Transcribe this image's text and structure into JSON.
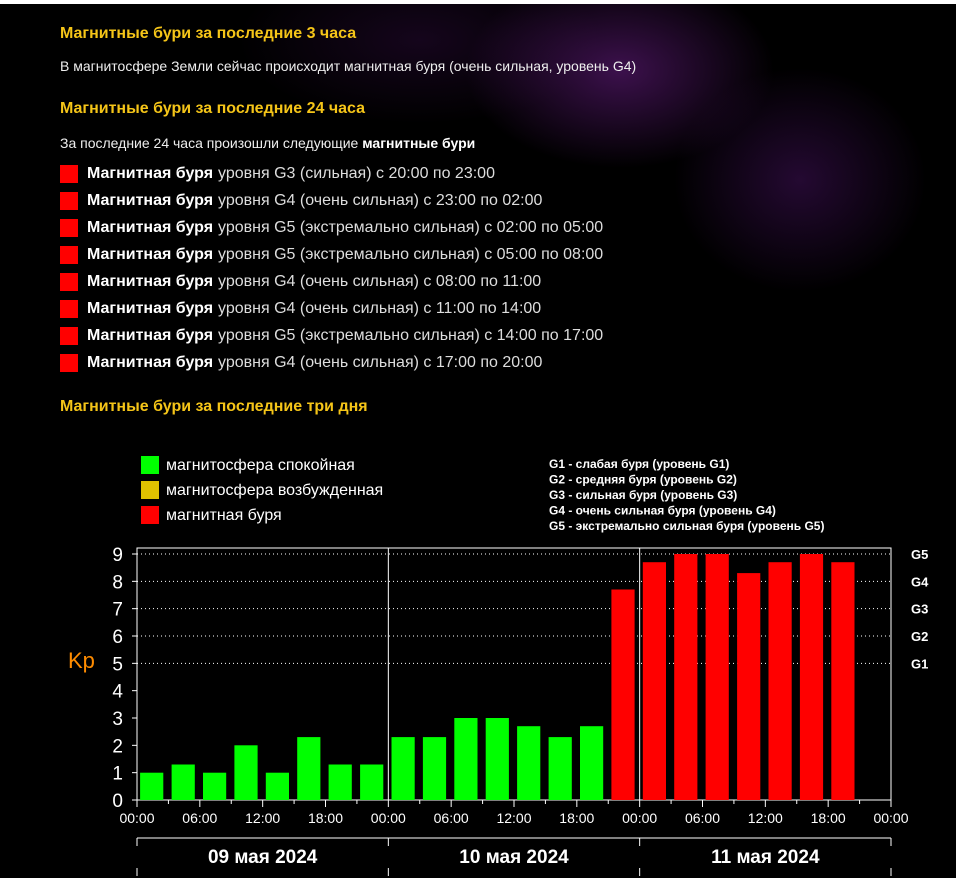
{
  "section_3h": {
    "title": "Магнитные бури за последние 3 часа",
    "text": "В магнитосфере Земли сейчас происходит магнитная буря (очень сильная, уровень G4)"
  },
  "section_24h": {
    "title": "Магнитные бури за последние 24 часа",
    "intro_prefix": "За последние 24 часа произошли следующие",
    "intro_bold": "магнитные бури",
    "items": [
      {
        "bold": "Магнитная буря",
        "text": "уровня G3 (сильная) с 20:00 по 23:00"
      },
      {
        "bold": "Магнитная буря",
        "text": "уровня G4 (очень сильная) с 23:00 по 02:00"
      },
      {
        "bold": "Магнитная буря",
        "text": "уровня G5 (экстремально сильная) с 02:00 по 05:00"
      },
      {
        "bold": "Магнитная буря",
        "text": "уровня G5 (экстремально сильная) с 05:00 по 08:00"
      },
      {
        "bold": "Магнитная буря",
        "text": "уровня G4 (очень сильная) с 08:00 по 11:00"
      },
      {
        "bold": "Магнитная буря",
        "text": "уровня G4 (очень сильная) с 11:00 по 14:00"
      },
      {
        "bold": "Магнитная буря",
        "text": "уровня G5 (экстремально сильная) с 14:00 по 17:00"
      },
      {
        "bold": "Магнитная буря",
        "text": "уровня G4 (очень сильная) с 17:00 по 20:00"
      }
    ]
  },
  "section_3d": {
    "title": "Магнитные бури за последние три дня"
  },
  "colors": {
    "heading": "#f5c518",
    "calm": "#00ff00",
    "excited": "#e0c000",
    "storm": "#ff0000",
    "ylabel": "#ff8c00"
  },
  "chart_data": {
    "type": "bar",
    "ylabel": "Kp",
    "ylim": [
      0,
      9
    ],
    "yticks": [
      "0",
      "1",
      "2",
      "3",
      "4",
      "5",
      "6",
      "7",
      "8",
      "9"
    ],
    "g_levels": [
      {
        "label": "G1",
        "kp": 5
      },
      {
        "label": "G2",
        "kp": 6
      },
      {
        "label": "G3",
        "kp": 7
      },
      {
        "label": "G4",
        "kp": 8
      },
      {
        "label": "G5",
        "kp": 9
      }
    ],
    "legend": [
      {
        "label": "магнитосфера спокойная",
        "status": "calm"
      },
      {
        "label": "магнитосфера возбужденная",
        "status": "excited"
      },
      {
        "label": "магнитная буря",
        "status": "storm"
      }
    ],
    "g_legend": [
      "G1 - слабая буря (уровень G1)",
      "G2 - средняя буря (уровень G2)",
      "G3 - сильная буря (уровень G3)",
      "G4 - очень сильная буря (уровень G4)",
      "G5 - экстремально сильная буря (уровень G5)"
    ],
    "x_tick_labels": [
      "00:00",
      "06:00",
      "12:00",
      "18:00",
      "00:00",
      "06:00",
      "12:00",
      "18:00",
      "00:00",
      "06:00",
      "12:00",
      "18:00",
      "00:00"
    ],
    "days": [
      "09 мая 2024",
      "10 мая 2024",
      "11 мая 2024"
    ],
    "bars": [
      {
        "value": 1.0,
        "status": "calm"
      },
      {
        "value": 1.3,
        "status": "calm"
      },
      {
        "value": 1.0,
        "status": "calm"
      },
      {
        "value": 2.0,
        "status": "calm"
      },
      {
        "value": 1.0,
        "status": "calm"
      },
      {
        "value": 2.3,
        "status": "calm"
      },
      {
        "value": 1.3,
        "status": "calm"
      },
      {
        "value": 1.3,
        "status": "calm"
      },
      {
        "value": 2.3,
        "status": "calm"
      },
      {
        "value": 2.3,
        "status": "calm"
      },
      {
        "value": 3.0,
        "status": "calm"
      },
      {
        "value": 3.0,
        "status": "calm"
      },
      {
        "value": 2.7,
        "status": "calm"
      },
      {
        "value": 2.3,
        "status": "calm"
      },
      {
        "value": 2.7,
        "status": "calm"
      },
      {
        "value": 7.7,
        "status": "storm"
      },
      {
        "value": 8.7,
        "status": "storm"
      },
      {
        "value": 9.0,
        "status": "storm"
      },
      {
        "value": 9.0,
        "status": "storm"
      },
      {
        "value": 8.3,
        "status": "storm"
      },
      {
        "value": 8.7,
        "status": "storm"
      },
      {
        "value": 9.0,
        "status": "storm"
      },
      {
        "value": 8.7,
        "status": "storm"
      }
    ]
  }
}
